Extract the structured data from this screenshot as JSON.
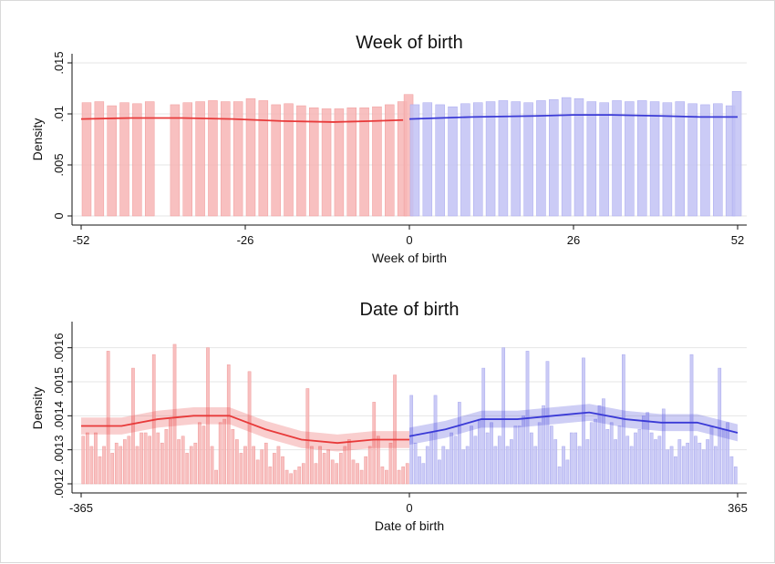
{
  "chart_data": [
    {
      "type": "bar",
      "title": "Week of birth",
      "xlabel": "Week of birth",
      "ylabel": "Density",
      "xlim": [
        -52,
        52
      ],
      "ylim": [
        0,
        0.015
      ],
      "xticks": [
        -52,
        -26,
        0,
        26,
        52
      ],
      "xtick_labels": [
        "-52",
        "-26",
        "0",
        "26",
        "52"
      ],
      "yticks": [
        0,
        0.005,
        0.01,
        0.015
      ],
      "ytick_labels": [
        "0",
        ".005",
        ".01",
        ".015"
      ],
      "grid": true,
      "colors": {
        "left": "#e83a3a",
        "right": "#3a3ad6",
        "left_bar": "#f7b5b5",
        "right_bar": "#c2c2f5"
      },
      "bars_left_x": [
        -52,
        -50,
        -48,
        -46,
        -44,
        -42,
        -38,
        -36,
        -34,
        -32,
        -30,
        -28,
        -26,
        -24,
        -22,
        -20,
        -18,
        -16,
        -14,
        -12,
        -10,
        -8,
        -6,
        -4,
        -2,
        -1
      ],
      "bars_left": [
        0.0111,
        0.0112,
        0.0108,
        0.0111,
        0.011,
        0.0112,
        0.0109,
        0.0111,
        0.0112,
        0.0113,
        0.0112,
        0.0112,
        0.0115,
        0.0113,
        0.0109,
        0.011,
        0.0108,
        0.0106,
        0.0105,
        0.0105,
        0.0106,
        0.0106,
        0.0107,
        0.0109,
        0.0112,
        0.0119
      ],
      "bars_right_x": [
        0,
        2,
        4,
        6,
        8,
        10,
        12,
        14,
        16,
        18,
        20,
        22,
        24,
        26,
        28,
        30,
        32,
        34,
        36,
        38,
        40,
        42,
        44,
        46,
        48,
        50,
        51
      ],
      "bars_right": [
        0.0109,
        0.0111,
        0.0109,
        0.0107,
        0.011,
        0.0111,
        0.0112,
        0.0113,
        0.0112,
        0.0111,
        0.0113,
        0.0114,
        0.0116,
        0.0115,
        0.0112,
        0.0111,
        0.0113,
        0.0112,
        0.0113,
        0.0112,
        0.0111,
        0.0112,
        0.011,
        0.0109,
        0.011,
        0.0108,
        0.0122
      ],
      "fit_left": {
        "x": [
          -52,
          -44,
          -36,
          -28,
          -20,
          -12,
          -6,
          -1
        ],
        "y": [
          0.0095,
          0.0096,
          0.0096,
          0.0095,
          0.0093,
          0.0092,
          0.0093,
          0.0094
        ]
      },
      "fit_right": {
        "x": [
          0,
          10,
          20,
          26,
          32,
          40,
          46,
          52
        ],
        "y": [
          0.0095,
          0.0097,
          0.0098,
          0.0099,
          0.0099,
          0.0098,
          0.0097,
          0.0097
        ]
      }
    },
    {
      "type": "bar",
      "title": "Date of birth",
      "xlabel": "Date of birth",
      "ylabel": "Density",
      "xlim": [
        -365,
        365
      ],
      "ylim": [
        0.0012,
        0.00165
      ],
      "xticks": [
        -365,
        0,
        365
      ],
      "xtick_labels": [
        "-365",
        "0",
        "365"
      ],
      "yticks": [
        0.0012,
        0.0013,
        0.0014,
        0.0015,
        0.0016
      ],
      "ytick_labels": [
        ".0012",
        ".0013",
        ".0014",
        ".0015",
        ".0016"
      ],
      "grid": true,
      "colors": {
        "left": "#e83a3a",
        "right": "#3a3ad6",
        "left_bar": "#f7b5b5",
        "right_bar": "#c2c2f5"
      },
      "bars_left": [
        0.00134,
        0.00135,
        0.00131,
        0.00135,
        0.00128,
        0.00131,
        0.00159,
        0.00129,
        0.00132,
        0.00131,
        0.00133,
        0.00134,
        0.00154,
        0.00131,
        0.00135,
        0.00135,
        0.00134,
        0.00158,
        0.00135,
        0.00132,
        0.00136,
        0.00139,
        0.00161,
        0.00133,
        0.00134,
        0.00129,
        0.00131,
        0.00132,
        0.00138,
        0.00137,
        0.0016,
        0.00131,
        0.00124,
        0.00138,
        0.00139,
        0.00155,
        0.00136,
        0.00133,
        0.00129,
        0.00131,
        0.00153,
        0.00131,
        0.00127,
        0.0013,
        0.00132,
        0.00125,
        0.00129,
        0.00131,
        0.00128,
        0.00124,
        0.00123,
        0.00124,
        0.00125,
        0.00126,
        0.00148,
        0.00131,
        0.00126,
        0.00131,
        0.00129,
        0.0013,
        0.00127,
        0.00126,
        0.00129,
        0.00131,
        0.00133,
        0.00127,
        0.00126,
        0.00124,
        0.00128,
        0.00131,
        0.00144,
        0.00134,
        0.00125,
        0.00124,
        0.00132,
        0.00152,
        0.00124,
        0.00125,
        0.00126
      ],
      "bars_right": [
        0.00146,
        0.00132,
        0.00128,
        0.00126,
        0.00131,
        0.00135,
        0.00146,
        0.00127,
        0.00131,
        0.0013,
        0.00135,
        0.00134,
        0.00144,
        0.0013,
        0.00131,
        0.00137,
        0.00134,
        0.00139,
        0.00154,
        0.00135,
        0.00138,
        0.00131,
        0.00134,
        0.0016,
        0.00131,
        0.00133,
        0.00137,
        0.00137,
        0.0014,
        0.00159,
        0.00135,
        0.00131,
        0.00138,
        0.00143,
        0.00156,
        0.00137,
        0.00133,
        0.00125,
        0.00131,
        0.00127,
        0.00135,
        0.00135,
        0.00131,
        0.00157,
        0.00133,
        0.00138,
        0.00139,
        0.00143,
        0.00145,
        0.00136,
        0.00138,
        0.00133,
        0.00137,
        0.00158,
        0.00134,
        0.00131,
        0.00135,
        0.00136,
        0.0014,
        0.00141,
        0.00135,
        0.00133,
        0.00134,
        0.00142,
        0.0013,
        0.00131,
        0.00128,
        0.00133,
        0.00131,
        0.00132,
        0.00158,
        0.00134,
        0.00132,
        0.0013,
        0.00133,
        0.00137,
        0.00131,
        0.00154,
        0.00136,
        0.00138,
        0.00128,
        0.00125
      ],
      "fit_left": {
        "x": [
          -365,
          -320,
          -280,
          -240,
          -200,
          -160,
          -120,
          -80,
          -40,
          0
        ],
        "y": [
          0.00137,
          0.00137,
          0.00139,
          0.0014,
          0.0014,
          0.00136,
          0.00133,
          0.00132,
          0.00133,
          0.00133
        ]
      },
      "fit_right": {
        "x": [
          0,
          40,
          80,
          120,
          160,
          200,
          240,
          280,
          320,
          365
        ],
        "y": [
          0.00134,
          0.00136,
          0.00139,
          0.00139,
          0.0014,
          0.00141,
          0.00139,
          0.00138,
          0.00138,
          0.00135
        ]
      }
    }
  ]
}
